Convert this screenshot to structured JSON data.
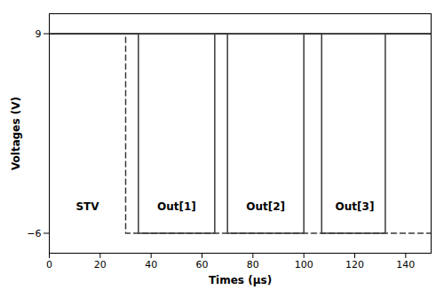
{
  "chart_data": {
    "type": "line",
    "xlabel": "Times (μs)",
    "ylabel": "Voltages (V)",
    "xlim": [
      0,
      150
    ],
    "ylim": [
      -7.5,
      10.5
    ],
    "xticks": [
      0,
      20,
      40,
      60,
      80,
      100,
      120,
      140
    ],
    "yticks": [
      -6,
      9
    ],
    "series": [
      {
        "color": "#3a3a3a",
        "line_style": "dashed",
        "x": [
          0,
          30,
          30,
          150
        ],
        "values": [
          9,
          9,
          -6,
          -6
        ]
      },
      {
        "color": "#3a3a3a",
        "line_style": "solid",
        "x": [
          0,
          35,
          35,
          65,
          65,
          150
        ],
        "values": [
          9,
          9,
          -6,
          -6,
          9,
          9
        ]
      },
      {
        "color": "#3a3a3a",
        "line_style": "solid",
        "x": [
          0,
          70,
          70,
          100,
          100,
          150
        ],
        "values": [
          9,
          9,
          -6,
          -6,
          9,
          9
        ]
      },
      {
        "color": "#3a3a3a",
        "line_style": "solid",
        "x": [
          0,
          107,
          107,
          132,
          132,
          150
        ],
        "values": [
          9,
          9,
          -6,
          -6,
          9,
          9
        ]
      }
    ],
    "annotations": [
      {
        "text": "STV",
        "x": 15,
        "y": -4.0
      },
      {
        "text": "Out[1]",
        "x": 50,
        "y": -4.0
      },
      {
        "text": "Out[2]",
        "x": 85,
        "y": -4.0
      },
      {
        "text": "Out[3]",
        "x": 120,
        "y": -4.0
      }
    ]
  }
}
